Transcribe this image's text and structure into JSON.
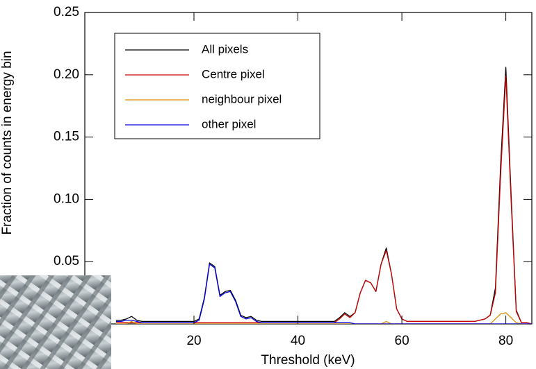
{
  "chart_data": {
    "type": "line",
    "xlabel": "Threshold (keV)",
    "ylabel": "Fraction of counts in energy bin",
    "x": [
      5,
      6,
      7,
      8,
      9,
      10,
      11,
      12,
      13,
      14,
      15,
      16,
      17,
      18,
      19,
      20,
      21,
      22,
      23,
      24,
      25,
      26,
      27,
      28,
      29,
      30,
      31,
      32,
      33,
      34,
      35,
      36,
      37,
      38,
      39,
      40,
      41,
      42,
      43,
      44,
      45,
      46,
      47,
      48,
      49,
      50,
      51,
      52,
      53,
      54,
      55,
      56,
      57,
      58,
      59,
      60,
      61,
      62,
      63,
      64,
      65,
      66,
      67,
      68,
      69,
      70,
      71,
      72,
      73,
      74,
      75,
      76,
      77,
      78,
      79,
      80,
      81,
      82,
      83,
      84,
      85
    ],
    "series": [
      {
        "name": "All pixels",
        "color": "#000000",
        "values": [
          0.003,
          0.003,
          0.004,
          0.006,
          0.003,
          0.002,
          0.002,
          0.002,
          0.002,
          0.002,
          0.002,
          0.002,
          0.002,
          0.002,
          0.002,
          0.002,
          0.004,
          0.021,
          0.049,
          0.046,
          0.023,
          0.026,
          0.027,
          0.019,
          0.007,
          0.005,
          0.006,
          0.003,
          0.002,
          0.002,
          0.002,
          0.002,
          0.002,
          0.002,
          0.002,
          0.002,
          0.002,
          0.002,
          0.002,
          0.002,
          0.002,
          0.002,
          0.002,
          0.005,
          0.009,
          0.006,
          0.009,
          0.025,
          0.035,
          0.033,
          0.026,
          0.048,
          0.061,
          0.04,
          0.012,
          0.004,
          0.002,
          0.002,
          0.002,
          0.002,
          0.002,
          0.002,
          0.002,
          0.002,
          0.002,
          0.002,
          0.002,
          0.002,
          0.002,
          0.002,
          0.003,
          0.004,
          0.007,
          0.029,
          0.128,
          0.206,
          0.105,
          0.011,
          0.001,
          0.001,
          0
        ]
      },
      {
        "name": "Centre pixel",
        "color": "#cc0000",
        "values": [
          0.001,
          0.001,
          0.001,
          0.001,
          0.001,
          0.001,
          0.001,
          0.001,
          0.001,
          0.001,
          0.001,
          0.001,
          0.001,
          0.001,
          0.001,
          0.001,
          0.001,
          0.001,
          0.001,
          0.001,
          0.001,
          0.001,
          0.001,
          0.001,
          0.001,
          0.001,
          0.001,
          0.001,
          0.001,
          0.001,
          0.001,
          0.001,
          0.001,
          0.001,
          0.001,
          0.001,
          0.001,
          0.001,
          0.001,
          0.001,
          0.001,
          0.001,
          0.001,
          0.004,
          0.008,
          0.005,
          0.009,
          0.025,
          0.035,
          0.033,
          0.026,
          0.048,
          0.059,
          0.04,
          0.012,
          0.004,
          0.002,
          0.002,
          0.002,
          0.002,
          0.002,
          0.002,
          0.002,
          0.002,
          0.002,
          0.002,
          0.002,
          0.002,
          0.002,
          0.002,
          0.003,
          0.004,
          0.007,
          0.025,
          0.12,
          0.199,
          0.1,
          0.01,
          0.001,
          0.001,
          0
        ]
      },
      {
        "name": "neighbour pixel",
        "color": "#e08a00",
        "values": [
          0,
          0,
          0,
          0.002,
          0,
          0,
          0,
          0,
          0,
          0,
          0,
          0,
          0,
          0,
          0,
          0,
          0,
          0,
          0,
          0,
          0,
          0,
          0,
          0,
          0,
          0,
          0,
          0,
          0,
          0,
          0,
          0,
          0,
          0,
          0,
          0,
          0,
          0,
          0,
          0,
          0,
          0,
          0,
          0,
          0,
          0,
          0,
          0,
          0,
          0,
          0,
          0,
          0.002,
          0,
          0,
          0,
          0,
          0,
          0,
          0,
          0,
          0,
          0,
          0,
          0,
          0,
          0,
          0,
          0,
          0,
          0,
          0,
          0,
          0.004,
          0.008,
          0.009,
          0.005,
          0.001,
          0,
          0,
          0
        ]
      },
      {
        "name": "other pixel",
        "color": "#0000dd",
        "values": [
          0.002,
          0.002,
          0.003,
          0.003,
          0.002,
          0.001,
          0.001,
          0.001,
          0.001,
          0.001,
          0.001,
          0.001,
          0.001,
          0.001,
          0.001,
          0.001,
          0.003,
          0.02,
          0.048,
          0.045,
          0.022,
          0.025,
          0.026,
          0.018,
          0.006,
          0.004,
          0.005,
          0.002,
          0.001,
          0.001,
          0.001,
          0.001,
          0.001,
          0.001,
          0.001,
          0.001,
          0.001,
          0.001,
          0.001,
          0.001,
          0.001,
          0.001,
          0.001,
          0.001,
          0.001,
          0.001,
          0,
          0,
          0,
          0,
          0,
          0,
          0,
          0,
          0,
          0,
          0,
          0,
          0,
          0,
          0,
          0,
          0,
          0,
          0,
          0,
          0,
          0,
          0,
          0,
          0,
          0,
          0,
          0,
          0,
          0,
          0,
          0,
          0,
          0,
          0
        ]
      }
    ],
    "xlim": [
      -1,
      85
    ],
    "xticks": [
      20,
      40,
      60,
      80
    ],
    "ylim": [
      0,
      0.25
    ],
    "yticks": [
      0.05,
      {
        "value": 0.1,
        "label": "0.10"
      },
      0.15,
      {
        "value": 0.2,
        "label": "0.20"
      },
      0.25
    ],
    "legend": "upper left"
  }
}
